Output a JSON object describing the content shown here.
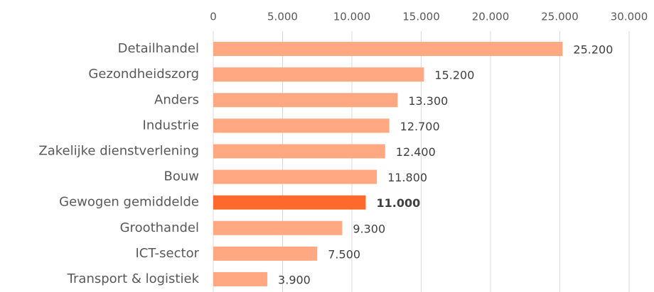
{
  "chart_data": {
    "type": "bar",
    "orientation": "horizontal",
    "categories": [
      "Detailhandel",
      "Gezondheidszorg",
      "Anders",
      "Industrie",
      "Zakelijke dienstverlening",
      "Bouw",
      "Gewogen gemiddelde",
      "Groothandel",
      "ICT-sector",
      "Transport & logistiek"
    ],
    "values": [
      25200,
      15200,
      13300,
      12700,
      12400,
      11800,
      11000,
      9300,
      7500,
      3900
    ],
    "value_labels": [
      "25.200",
      "15.200",
      "13.300",
      "12.700",
      "12.400",
      "11.800",
      "11.000",
      "9.300",
      "7.500",
      "3.900"
    ],
    "color": "#ffa882",
    "highlight_index": 6,
    "highlight_color": "#ff6a2c",
    "xlim": [
      0,
      30000
    ],
    "xticks": [
      0,
      {
        "value": 5000,
        "label": "5.000"
      },
      {
        "value": 10000,
        "label": "10.000"
      },
      {
        "value": 15000,
        "label": "15.000"
      },
      {
        "value": 20000,
        "label": "20.000"
      },
      {
        "value": 25000,
        "label": "25.000"
      },
      {
        "value": 30000,
        "label": "30.000"
      }
    ],
    "grid": true
  }
}
